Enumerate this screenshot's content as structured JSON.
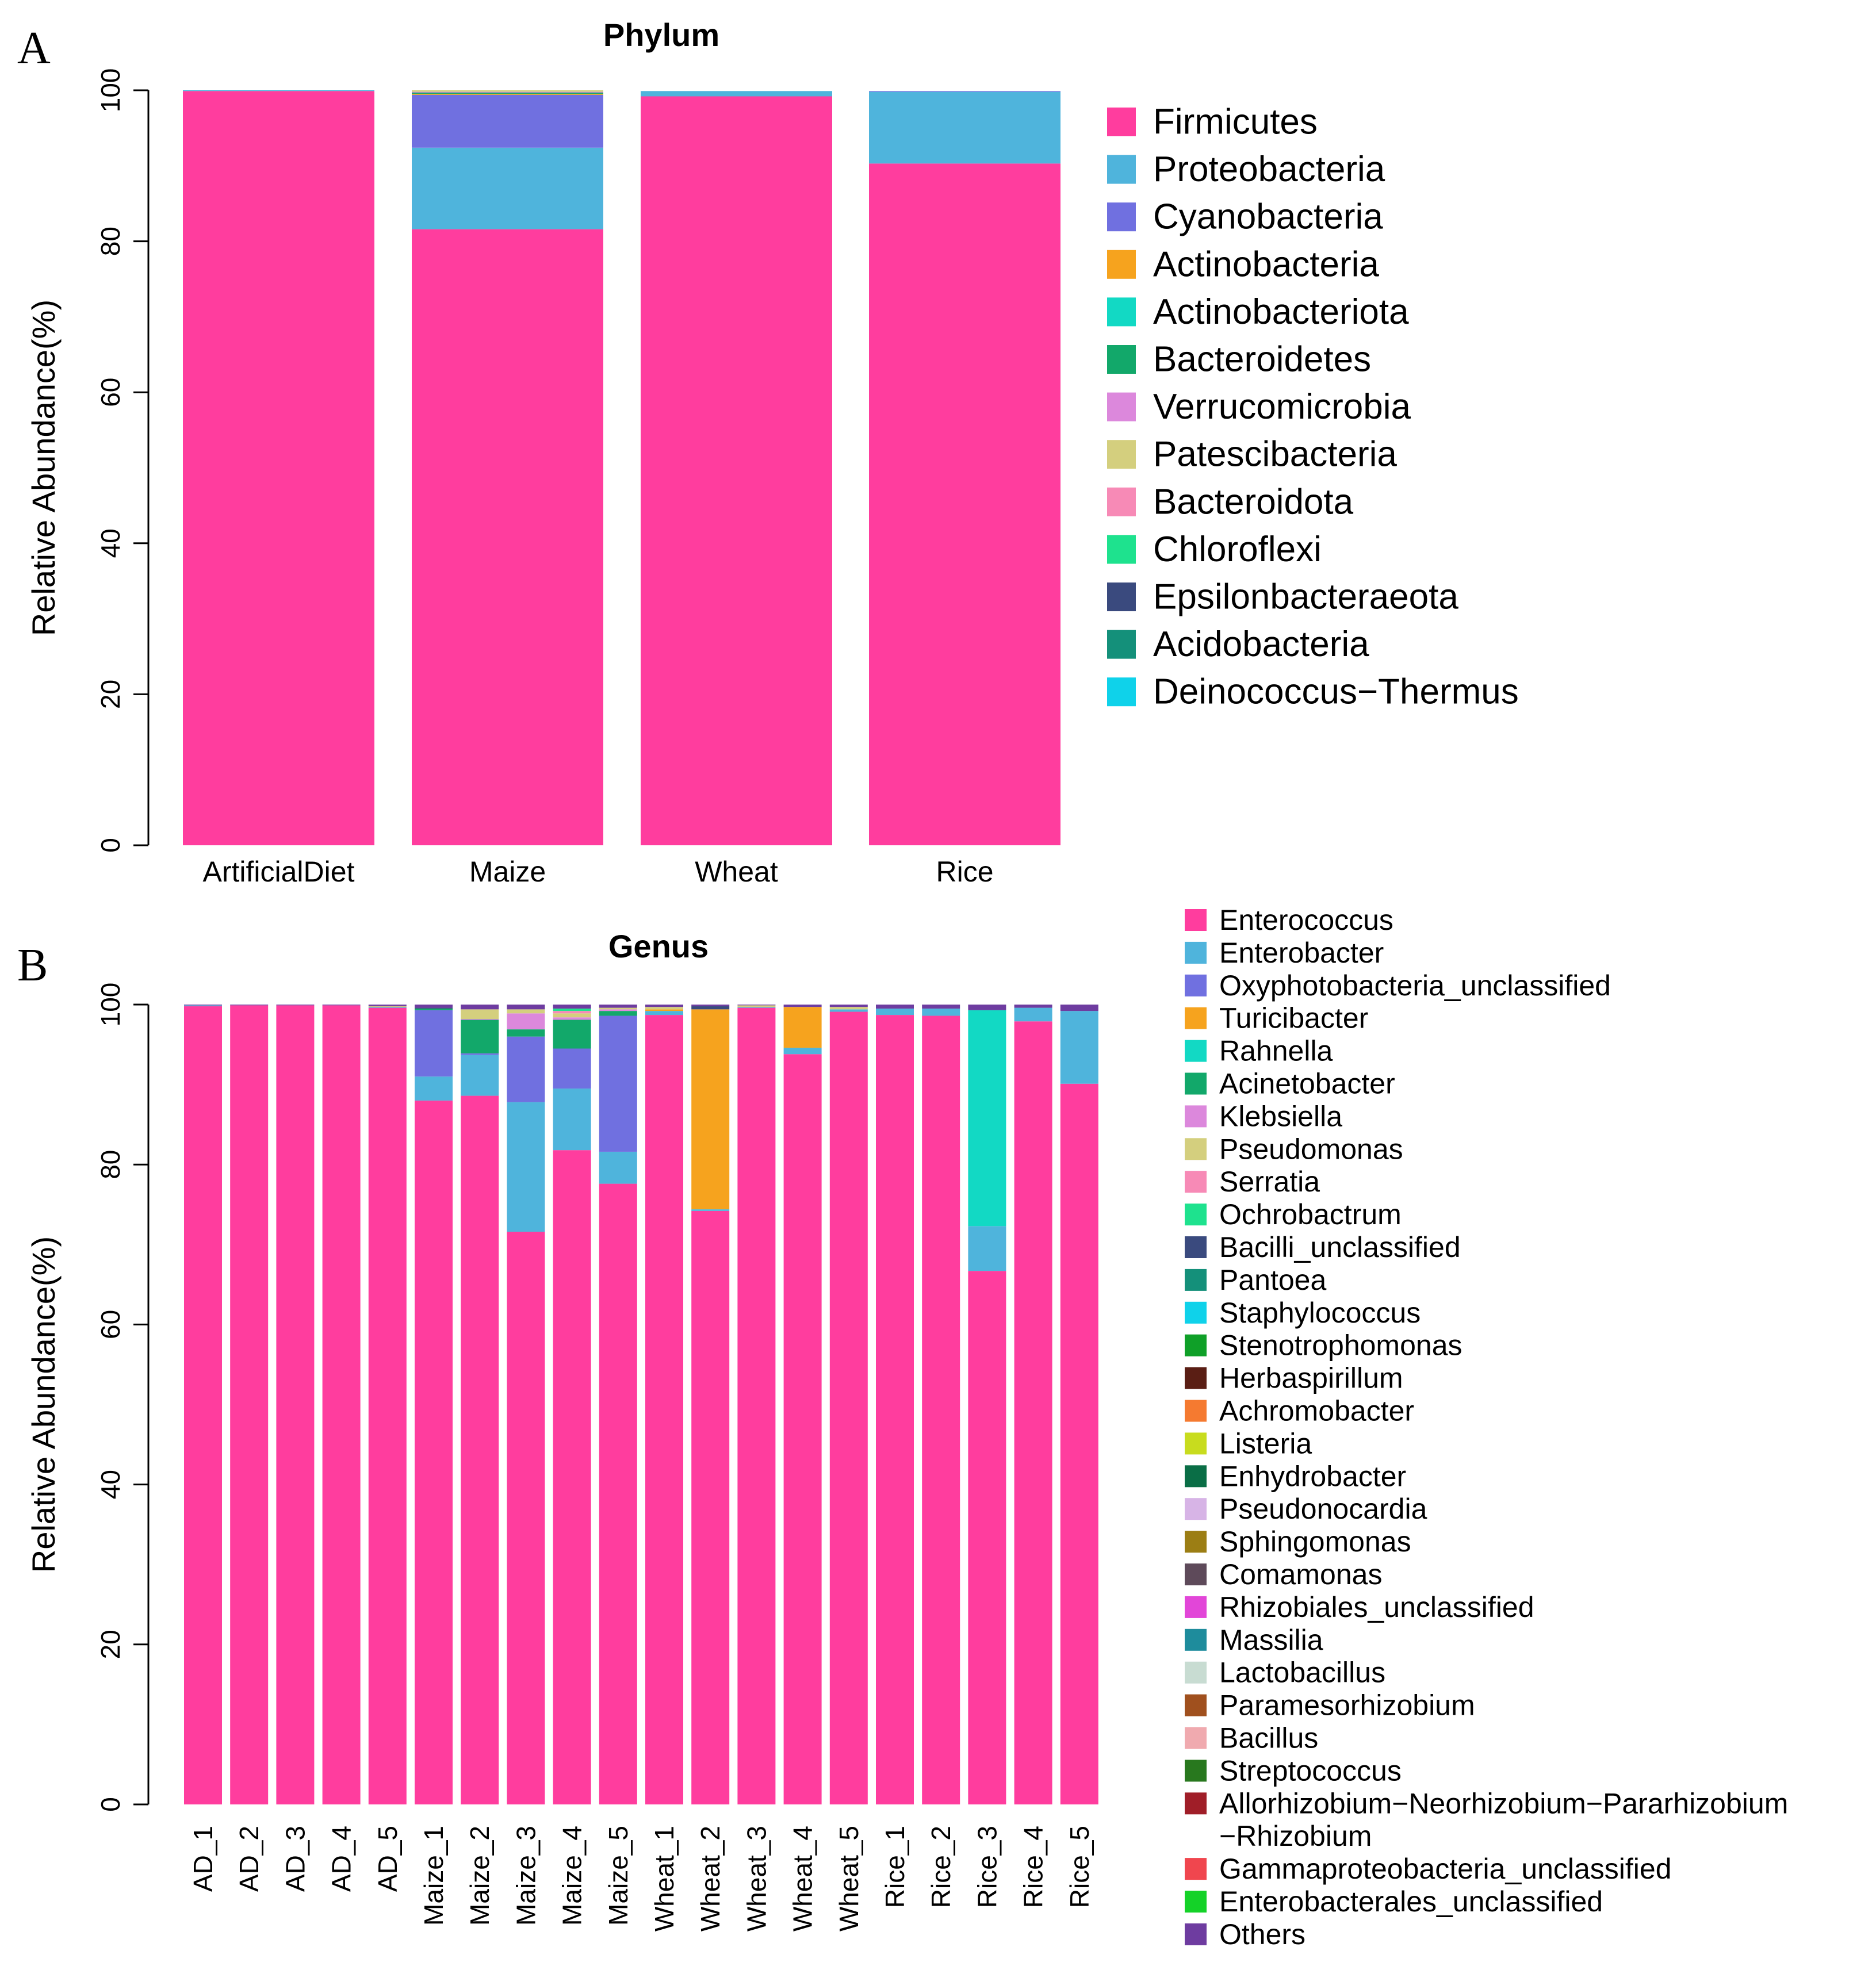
{
  "panel_labels": {
    "a": "A",
    "b": "B"
  },
  "chart_data": [
    {
      "type": "bar",
      "stacked": true,
      "title": "Phylum",
      "ylabel": "Relative Abundance(%)",
      "xlabel": "",
      "ylim": [
        0,
        100
      ],
      "yticks": [
        "0",
        "20",
        "40",
        "60",
        "80",
        "100"
      ],
      "categories": [
        "ArtificialDiet",
        "Maize",
        "Wheat",
        "Rice"
      ],
      "legend_position": "right",
      "series": [
        {
          "name": "Firmicutes",
          "color": "#FF3D9E",
          "values": [
            99.9,
            81.6,
            99.2,
            90.3
          ]
        },
        {
          "name": "Proteobacteria",
          "color": "#4FB4DC",
          "values": [
            0.1,
            10.8,
            0.7,
            9.5
          ]
        },
        {
          "name": "Cyanobacteria",
          "color": "#7070E0",
          "values": [
            0,
            7.0,
            0,
            0.1
          ]
        },
        {
          "name": "Actinobacteria",
          "color": "#F6A31E",
          "values": [
            0,
            0.1,
            0,
            0
          ]
        },
        {
          "name": "Actinobacteriota",
          "color": "#12D9C4",
          "values": [
            0,
            0,
            0,
            0
          ]
        },
        {
          "name": "Bacteroidetes",
          "color": "#12A86A",
          "values": [
            0,
            0.2,
            0,
            0
          ]
        },
        {
          "name": "Verrucomicrobia",
          "color": "#DC88DC",
          "values": [
            0,
            0.1,
            0,
            0
          ]
        },
        {
          "name": "Patescibacteria",
          "color": "#D4CF7E",
          "values": [
            0,
            0.2,
            0,
            0
          ]
        },
        {
          "name": "Bacteroidota",
          "color": "#F78AB6",
          "values": [
            0,
            0,
            0,
            0
          ]
        },
        {
          "name": "Chloroflexi",
          "color": "#1EE28E",
          "values": [
            0,
            0,
            0,
            0
          ]
        },
        {
          "name": "Epsilonbacteraeota",
          "color": "#3A4A7E",
          "values": [
            0,
            0,
            0,
            0
          ]
        },
        {
          "name": "Acidobacteria",
          "color": "#14907A",
          "values": [
            0,
            0,
            0,
            0
          ]
        },
        {
          "name": "Deinococcus−Thermus",
          "color": "#0FD2EA",
          "values": [
            0,
            0,
            0,
            0
          ]
        }
      ]
    },
    {
      "type": "bar",
      "stacked": true,
      "title": "Genus",
      "ylabel": "Relative Abundance(%)",
      "xlabel": "",
      "ylim": [
        0,
        100
      ],
      "yticks": [
        "0",
        "20",
        "40",
        "60",
        "80",
        "100"
      ],
      "categories": [
        "AD_1",
        "AD_2",
        "AD_3",
        "AD_4",
        "AD_5",
        "Maize_1",
        "Maize_2",
        "Maize_3",
        "Maize_4",
        "Maize_5",
        "Wheat_1",
        "Wheat_2",
        "Wheat_3",
        "Wheat_4",
        "Wheat_5",
        "Rice_1",
        "Rice_2",
        "Rice_3",
        "Rice_4",
        "Rice_5"
      ],
      "legend_position": "right",
      "series": [
        {
          "name": "Enterococcus",
          "color": "#FF3D9E",
          "values": [
            99.8,
            99.9,
            99.9,
            99.9,
            99.6,
            88.0,
            88.6,
            71.6,
            81.8,
            77.6,
            98.7,
            74.2,
            99.6,
            93.8,
            99.1,
            98.7,
            98.6,
            66.7,
            97.9,
            90.1
          ]
        },
        {
          "name": "Enterobacter",
          "color": "#4FB4DC",
          "values": [
            0.1,
            0,
            0,
            0,
            0.1,
            3.0,
            5.1,
            16.2,
            7.7,
            4.0,
            0.5,
            0.2,
            0.1,
            0.8,
            0.3,
            0.8,
            0.9,
            5.6,
            1.7,
            9.1
          ]
        },
        {
          "name": "Oxyphotobacteria_unclassified",
          "color": "#7070E0",
          "values": [
            0,
            0,
            0,
            0,
            0,
            8.3,
            0.2,
            8.2,
            5.0,
            17.0,
            0,
            0,
            0,
            0,
            0,
            0,
            0,
            0,
            0,
            0
          ]
        },
        {
          "name": "Turicibacter",
          "color": "#F6A31E",
          "values": [
            0,
            0,
            0,
            0,
            0,
            0,
            0,
            0,
            0,
            0,
            0.2,
            25.0,
            0,
            5.1,
            0,
            0,
            0,
            0,
            0,
            0
          ]
        },
        {
          "name": "Rahnella",
          "color": "#12D9C4",
          "values": [
            0,
            0,
            0,
            0,
            0,
            0,
            0,
            0,
            0,
            0,
            0,
            0,
            0,
            0,
            0,
            0,
            0,
            27.0,
            0,
            0
          ]
        },
        {
          "name": "Acinetobacter",
          "color": "#12A86A",
          "values": [
            0,
            0,
            0,
            0,
            0,
            0.2,
            4.2,
            0.9,
            3.6,
            0.6,
            0,
            0,
            0,
            0,
            0,
            0,
            0,
            0,
            0,
            0
          ]
        },
        {
          "name": "Klebsiella",
          "color": "#DC88DC",
          "values": [
            0,
            0,
            0,
            0,
            0,
            0,
            0.1,
            2.0,
            0.3,
            0.2,
            0,
            0,
            0,
            0,
            0,
            0,
            0,
            0,
            0,
            0
          ]
        },
        {
          "name": "Pseudomonas",
          "color": "#D4CF7E",
          "values": [
            0,
            0,
            0,
            0,
            0.1,
            0,
            1.2,
            0.5,
            0.5,
            0.2,
            0.3,
            0,
            0.2,
            0,
            0.3,
            0,
            0,
            0,
            0,
            0
          ]
        },
        {
          "name": "Serratia",
          "color": "#F78AB6",
          "values": [
            0,
            0,
            0,
            0,
            0,
            0,
            0,
            0,
            0.3,
            0,
            0,
            0,
            0,
            0,
            0,
            0,
            0,
            0,
            0,
            0
          ]
        },
        {
          "name": "Ochrobactrum",
          "color": "#1EE28E",
          "values": [
            0,
            0,
            0,
            0,
            0,
            0,
            0,
            0,
            0.3,
            0,
            0,
            0,
            0,
            0,
            0,
            0,
            0,
            0,
            0,
            0
          ]
        },
        {
          "name": "Bacilli_unclassified",
          "color": "#3A4A7E",
          "values": [
            0,
            0,
            0,
            0,
            0,
            0.1,
            0,
            0,
            0,
            0,
            0,
            0.4,
            0,
            0,
            0,
            0,
            0,
            0,
            0,
            0
          ]
        },
        {
          "name": "Pantoea",
          "color": "#14907A",
          "values": [
            0,
            0,
            0,
            0,
            0,
            0,
            0,
            0,
            0,
            0,
            0,
            0,
            0,
            0,
            0,
            0,
            0,
            0,
            0,
            0
          ]
        },
        {
          "name": "Staphylococcus",
          "color": "#0FD2EA",
          "values": [
            0,
            0,
            0,
            0,
            0,
            0,
            0,
            0,
            0,
            0,
            0,
            0,
            0,
            0,
            0,
            0,
            0,
            0,
            0,
            0
          ]
        },
        {
          "name": "Stenotrophomonas",
          "color": "#0FA028",
          "values": [
            0,
            0,
            0,
            0,
            0,
            0,
            0,
            0,
            0,
            0,
            0,
            0,
            0,
            0,
            0,
            0,
            0,
            0,
            0,
            0
          ]
        },
        {
          "name": "Herbaspirillum",
          "color": "#5A1E14",
          "values": [
            0,
            0,
            0,
            0,
            0,
            0,
            0,
            0,
            0,
            0,
            0,
            0,
            0,
            0,
            0,
            0,
            0,
            0,
            0,
            0
          ]
        },
        {
          "name": "Achromobacter",
          "color": "#F57A30",
          "values": [
            0,
            0,
            0,
            0,
            0,
            0,
            0,
            0,
            0,
            0,
            0,
            0,
            0,
            0,
            0,
            0,
            0,
            0,
            0,
            0
          ]
        },
        {
          "name": "Listeria",
          "color": "#C8DC1E",
          "values": [
            0,
            0,
            0,
            0,
            0,
            0,
            0,
            0,
            0,
            0,
            0,
            0,
            0,
            0,
            0,
            0,
            0,
            0,
            0,
            0
          ]
        },
        {
          "name": "Enhydrobacter",
          "color": "#0A6E46",
          "values": [
            0,
            0,
            0,
            0,
            0,
            0,
            0,
            0,
            0,
            0,
            0,
            0,
            0,
            0,
            0,
            0,
            0,
            0,
            0,
            0
          ]
        },
        {
          "name": "Pseudonocardia",
          "color": "#D7B4E6",
          "values": [
            0,
            0,
            0,
            0,
            0,
            0,
            0,
            0,
            0,
            0,
            0,
            0,
            0,
            0,
            0,
            0,
            0,
            0,
            0,
            0
          ]
        },
        {
          "name": "Sphingomonas",
          "color": "#9C7E14",
          "values": [
            0,
            0,
            0,
            0,
            0,
            0,
            0,
            0,
            0,
            0,
            0,
            0,
            0,
            0,
            0,
            0,
            0,
            0,
            0,
            0
          ]
        },
        {
          "name": "Comamonas",
          "color": "#5E4A5A",
          "values": [
            0,
            0,
            0,
            0,
            0,
            0,
            0,
            0,
            0,
            0,
            0,
            0,
            0,
            0,
            0,
            0,
            0,
            0,
            0,
            0
          ]
        },
        {
          "name": "Rhizobiales_unclassified",
          "color": "#E246D8",
          "values": [
            0,
            0,
            0,
            0,
            0,
            0,
            0,
            0,
            0,
            0,
            0,
            0,
            0,
            0,
            0,
            0,
            0,
            0,
            0,
            0
          ]
        },
        {
          "name": "Massilia",
          "color": "#1E8C9C",
          "values": [
            0,
            0,
            0,
            0,
            0,
            0,
            0,
            0,
            0,
            0,
            0,
            0,
            0,
            0,
            0,
            0,
            0,
            0,
            0,
            0
          ]
        },
        {
          "name": "Lactobacillus",
          "color": "#C8DCD2",
          "values": [
            0,
            0,
            0,
            0,
            0,
            0,
            0,
            0,
            0,
            0,
            0,
            0,
            0,
            0,
            0,
            0,
            0,
            0,
            0,
            0
          ]
        },
        {
          "name": "Paramesorhizobium",
          "color": "#A0501E",
          "values": [
            0,
            0,
            0,
            0,
            0,
            0,
            0,
            0,
            0,
            0,
            0,
            0,
            0,
            0,
            0,
            0,
            0,
            0,
            0,
            0
          ]
        },
        {
          "name": "Bacillus",
          "color": "#F0AAAF",
          "values": [
            0,
            0,
            0,
            0,
            0,
            0,
            0,
            0,
            0,
            0,
            0,
            0,
            0,
            0,
            0,
            0,
            0,
            0,
            0,
            0
          ]
        },
        {
          "name": "Streptococcus",
          "color": "#28781E",
          "values": [
            0,
            0,
            0,
            0,
            0,
            0,
            0,
            0,
            0,
            0,
            0,
            0,
            0,
            0,
            0,
            0,
            0,
            0,
            0,
            0
          ]
        },
        {
          "name": "Allorhizobium−Neorhizobium−Pararhizobium",
          "name_line2": "−Rhizobium",
          "color": "#A01E28",
          "values": [
            0,
            0,
            0,
            0,
            0,
            0,
            0,
            0,
            0,
            0,
            0,
            0,
            0,
            0,
            0,
            0,
            0,
            0,
            0,
            0
          ]
        },
        {
          "name": "Gammaproteobacteria_unclassified",
          "color": "#F0464E",
          "values": [
            0,
            0,
            0,
            0,
            0,
            0,
            0,
            0,
            0,
            0,
            0,
            0,
            0,
            0,
            0,
            0,
            0,
            0,
            0,
            0
          ]
        },
        {
          "name": "Enterobacterales_unclassified",
          "color": "#14D228",
          "values": [
            0,
            0,
            0,
            0,
            0,
            0,
            0,
            0,
            0,
            0,
            0,
            0,
            0,
            0,
            0,
            0,
            0,
            0,
            0,
            0
          ]
        },
        {
          "name": "Others",
          "color": "#6E3CA0",
          "values": [
            0.1,
            0.1,
            0.1,
            0.1,
            0.2,
            0.4,
            0.6,
            0.6,
            0.5,
            0.4,
            0.3,
            0.2,
            0.1,
            0.3,
            0.3,
            0.5,
            0.5,
            0.7,
            0.4,
            0.8
          ]
        }
      ]
    }
  ]
}
